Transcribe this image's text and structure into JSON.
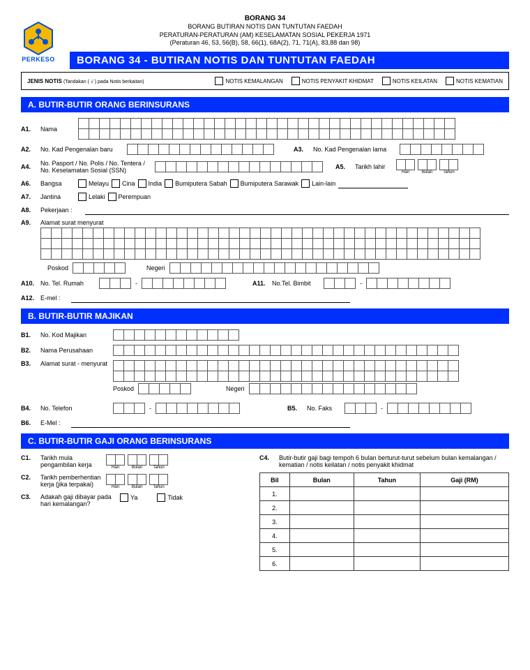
{
  "header": {
    "title1": "BORANG 34",
    "title2": "BORANG BUTIRAN NOTIS DAN TUNTUTAN FAEDAH",
    "title3": "PERATURAN-PERATURAN (AM) KESELAMATAN SOSIAL PEKERJA 1971",
    "title4": "(Peraturan 46, 53, 56(B), 58, 66(1), 68A(2), 71, 71(A), 83,88 dan 98)"
  },
  "brand": "PERKESO",
  "mainBanner": "BORANG 34 - BUTIRAN  NOTIS DAN TUNTUTAN FAEDAH",
  "jenis": {
    "label": "JENIS NOTIS",
    "sub": "(Tandakan ( √ ) pada Notis berkaitan)",
    "opts": [
      "NOTIS KEMALANGAN",
      "NOTIS PENYAKIT KHIDMAT",
      "NOTIS KEILATAN",
      "NOTIS KEMATIAN"
    ]
  },
  "secA": {
    "hdr": "A.   BUTIR-BUTIR  ORANG BERINSURANS",
    "a1": "Nama",
    "a2": "No. Kad Pengenalan baru",
    "a3": "No. Kad Pengenalan lama",
    "a4": "No. Pasport / No. Polis / No. Tentera / No. Keselamatan Sosial (SSN)",
    "a5": "Tarikh lahir",
    "a6": "Bangsa",
    "a6opts": [
      "Melayu",
      "Cina",
      "India",
      "Bumiputera Sabah",
      "Bumiputera Sarawak",
      "Lain-lain"
    ],
    "a7": "Jantina",
    "a7opts": [
      "Lelaki",
      "Perempuan"
    ],
    "a8": "Pekerjaan :",
    "a9": "Alamat surat menyurat",
    "poskod": "Poskod",
    "negeri": "Negeri",
    "a10": "No. Tel. Rumah",
    "a11": "No.Tel. Bimbit",
    "a12": "E-mel :",
    "dateLabels": {
      "h": "Hari",
      "b": "Bulan",
      "t": "Tahun"
    }
  },
  "secB": {
    "hdr": "B.   BUTIR-BUTIR MAJIKAN",
    "b1": "No. Kod Majikan",
    "b2": "Nama Perusahaan",
    "b3": "Alamat surat - menyurat",
    "poskod": "Poskod",
    "negeri": "Negeri",
    "b4": "No. Telefon",
    "b5": "No. Faks",
    "b6": "E-Mel :"
  },
  "secC": {
    "hdr": "C.   BUTIR-BUTIR GAJI ORANG BERINSURANS",
    "c1": "Tarikh mula pengambilan kerja",
    "c2": "Tarikh pemberhentian kerja (jika terpakai)",
    "c3": "Adakah gaji dibayar pada hari kemalangan?",
    "c3opts": [
      "Ya",
      "Tidak"
    ],
    "c4": "Butir-butir gaji bagi tempoh 6 bulan berturut-turut sebelum bulan kemalangan / kematian / notis keilatan / notis penyakit khidmat",
    "tbl": {
      "h1": "Bil",
      "h2": "Bulan",
      "h3": "Tahun",
      "h4": "Gaji (RM)",
      "rows": [
        "1.",
        "2.",
        "3.",
        "4.",
        "5.",
        "6."
      ]
    }
  }
}
